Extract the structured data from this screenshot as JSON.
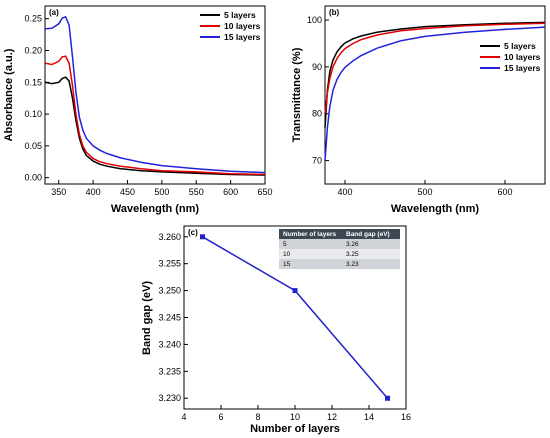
{
  "chart_data": [
    {
      "panel_label": "(a)",
      "type": "line",
      "xlabel": "Wavelength (nm)",
      "ylabel": "Absorbance (a.u.)",
      "xlim": [
        330,
        650
      ],
      "ylim": [
        -0.01,
        0.27
      ],
      "xticks": [
        350,
        400,
        450,
        500,
        550,
        600,
        650
      ],
      "yticks": [
        0.0,
        0.05,
        0.1,
        0.15,
        0.2,
        0.25
      ],
      "ytick_labels": [
        "0.00",
        "0.05",
        "0.10",
        "0.15",
        "0.20",
        "0.25"
      ],
      "legend_position": "top-right",
      "series": [
        {
          "name": "5 layers",
          "color": "#000000",
          "x": [
            330,
            340,
            350,
            355,
            360,
            365,
            370,
            375,
            380,
            385,
            390,
            400,
            410,
            420,
            440,
            470,
            500,
            550,
            600,
            650
          ],
          "y": [
            0.15,
            0.148,
            0.15,
            0.156,
            0.158,
            0.152,
            0.125,
            0.09,
            0.062,
            0.045,
            0.035,
            0.026,
            0.021,
            0.018,
            0.014,
            0.011,
            0.009,
            0.007,
            0.005,
            0.004
          ]
        },
        {
          "name": "10 layers",
          "color": "#e00000",
          "x": [
            330,
            340,
            350,
            355,
            360,
            365,
            370,
            375,
            380,
            385,
            390,
            400,
            410,
            420,
            440,
            470,
            500,
            550,
            600,
            650
          ],
          "y": [
            0.18,
            0.178,
            0.183,
            0.19,
            0.191,
            0.18,
            0.145,
            0.1,
            0.068,
            0.05,
            0.04,
            0.03,
            0.025,
            0.022,
            0.018,
            0.014,
            0.011,
            0.009,
            0.006,
            0.005
          ]
        },
        {
          "name": "15 layers",
          "color": "#2222dd",
          "x": [
            330,
            340,
            350,
            355,
            360,
            365,
            370,
            375,
            380,
            385,
            390,
            400,
            410,
            420,
            440,
            470,
            500,
            550,
            600,
            650
          ],
          "y": [
            0.234,
            0.235,
            0.242,
            0.251,
            0.253,
            0.24,
            0.19,
            0.135,
            0.095,
            0.075,
            0.062,
            0.05,
            0.043,
            0.038,
            0.031,
            0.024,
            0.019,
            0.014,
            0.01,
            0.008
          ]
        }
      ]
    },
    {
      "panel_label": "(b)",
      "type": "line",
      "xlabel": "Wavelength (nm)",
      "ylabel": "Transmittance (%)",
      "xlim": [
        375,
        650
      ],
      "ylim": [
        65,
        103
      ],
      "xticks": [
        400,
        500,
        600
      ],
      "yticks": [
        70,
        80,
        90,
        100
      ],
      "legend_position": "right",
      "series": [
        {
          "name": "5 layers",
          "color": "#000000",
          "x": [
            375,
            378,
            381,
            385,
            390,
            395,
            400,
            410,
            420,
            440,
            470,
            500,
            550,
            600,
            650
          ],
          "y": [
            77.0,
            85.0,
            89.0,
            91.5,
            93.2,
            94.3,
            95.1,
            96.0,
            96.6,
            97.4,
            98.1,
            98.6,
            99.0,
            99.3,
            99.5
          ]
        },
        {
          "name": "10 layers",
          "color": "#e00000",
          "x": [
            375,
            378,
            381,
            385,
            390,
            395,
            400,
            410,
            420,
            440,
            470,
            500,
            550,
            600,
            650
          ],
          "y": [
            80.0,
            84.5,
            87.5,
            90.0,
            91.8,
            93.0,
            93.9,
            95.0,
            95.8,
            96.8,
            97.7,
            98.2,
            98.8,
            99.1,
            99.3
          ]
        },
        {
          "name": "15 layers",
          "color": "#2222dd",
          "x": [
            375,
            378,
            381,
            385,
            390,
            395,
            400,
            410,
            420,
            440,
            470,
            500,
            550,
            600,
            650
          ],
          "y": [
            70.0,
            77.0,
            81.5,
            85.0,
            87.3,
            88.8,
            89.9,
            91.3,
            92.4,
            94.0,
            95.6,
            96.5,
            97.4,
            98.0,
            98.5
          ]
        }
      ]
    },
    {
      "panel_label": "(c)",
      "type": "line",
      "xlabel": "Number of layers",
      "ylabel": "Band gap (eV)",
      "xlim": [
        4,
        16
      ],
      "ylim": [
        3.228,
        3.262
      ],
      "xticks": [
        4,
        6,
        8,
        10,
        12,
        14,
        16
      ],
      "yticks": [
        3.23,
        3.235,
        3.24,
        3.245,
        3.25,
        3.255,
        3.26
      ],
      "ytick_labels": [
        "3.230",
        "3.235",
        "3.240",
        "3.245",
        "3.250",
        "3.255",
        "3.260"
      ],
      "series": [
        {
          "color": "#2222cc",
          "x": [
            5,
            10,
            15
          ],
          "y": [
            3.26,
            3.25,
            3.23
          ]
        }
      ],
      "table": {
        "headers": [
          "Number of layers",
          "Band gap (eV)"
        ],
        "rows": [
          [
            "5",
            "3.26"
          ],
          [
            "10",
            "3.25"
          ],
          [
            "15",
            "3.23"
          ]
        ],
        "header_color": "#3d4753",
        "row_colors": [
          "#d0d3d8",
          "#e8eaed"
        ]
      }
    }
  ]
}
